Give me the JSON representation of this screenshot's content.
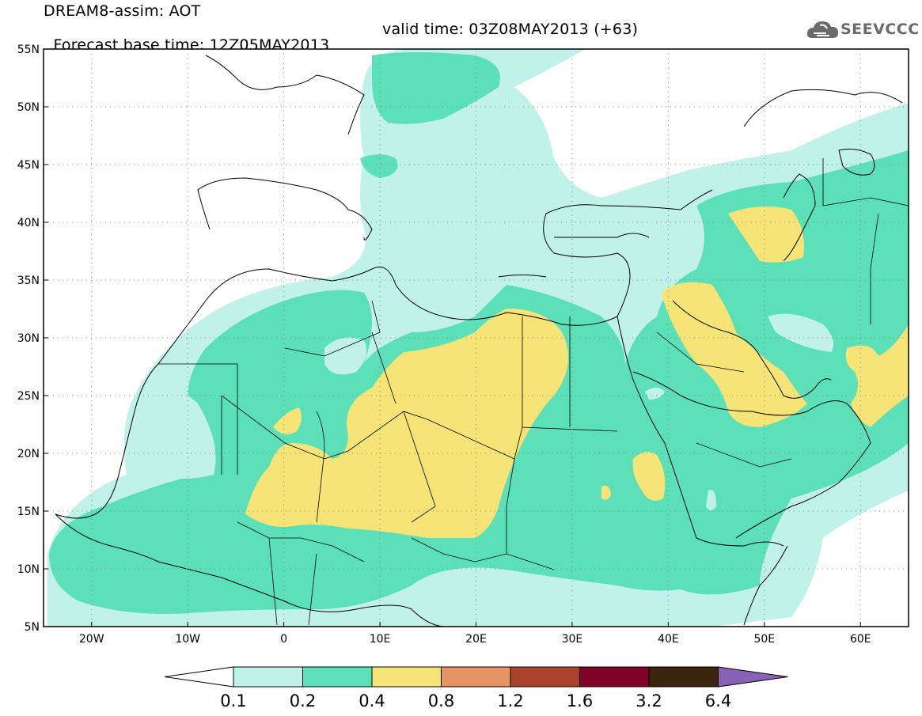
{
  "title": {
    "line1": "DREAM8-assim: AOT",
    "base_time": "Forecast base time: 12Z05MAY2013",
    "valid_time": "valid time: 03Z08MAY2013 (+63)"
  },
  "logo": {
    "text": "SEEVCCC",
    "icon": "cloud-logo-icon"
  },
  "axes": {
    "lat_labels": [
      "55N",
      "50N",
      "45N",
      "40N",
      "35N",
      "30N",
      "25N",
      "20N",
      "15N",
      "10N",
      "5N"
    ],
    "lon_labels": [
      "20W",
      "10W",
      "0",
      "10E",
      "20E",
      "30E",
      "40E",
      "50E",
      "60E"
    ],
    "lat_values": [
      55,
      50,
      45,
      40,
      35,
      30,
      25,
      20,
      15,
      10,
      5
    ],
    "lon_values": [
      -20,
      -10,
      0,
      10,
      20,
      30,
      40,
      50,
      60
    ],
    "lon_range": [
      -25,
      65
    ],
    "lat_range": [
      5,
      55
    ],
    "grid": "dotted"
  },
  "legend": {
    "labels": [
      "0.1",
      "0.2",
      "0.4",
      "0.8",
      "1.2",
      "1.6",
      "3.2",
      "6.4"
    ],
    "colors": [
      "#ffffff",
      "#c0f2ea",
      "#5ce0b8",
      "#f6e477",
      "#e89364",
      "#a9432d",
      "#7e0326",
      "#3b2410",
      "#8a62b5"
    ]
  },
  "colors": {
    "aot_0_1": "#c0f2ea",
    "aot_0_2": "#5ce0b8",
    "aot_0_4": "#f6e477"
  }
}
